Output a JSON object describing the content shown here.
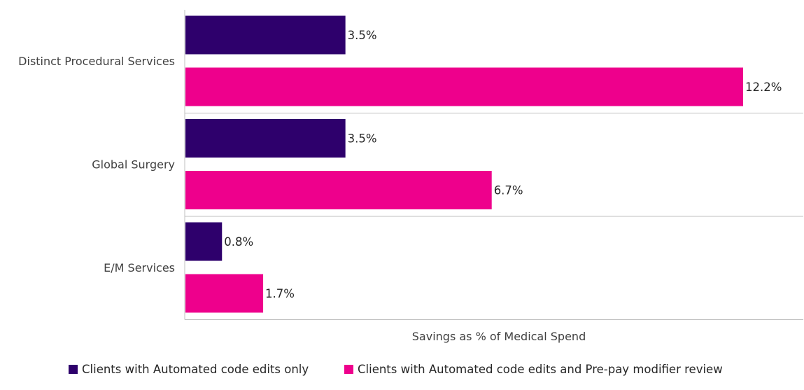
{
  "chart_data": {
    "type": "bar",
    "orientation": "horizontal",
    "categories": [
      "Distinct Procedural Services",
      "Global Surgery",
      "E/M Services"
    ],
    "series": [
      {
        "name": "Clients with Automated code edits only",
        "color": "#2e006c",
        "values": [
          3.5,
          3.5,
          0.8
        ],
        "labels": [
          "3.5%",
          "3.5%",
          "0.8%"
        ]
      },
      {
        "name": "Clients with Automated code edits and Pre-pay modifier review",
        "color": "#ee008c",
        "values": [
          12.2,
          6.7,
          1.7
        ],
        "labels": [
          "12.2%",
          "6.7%",
          "1.7%"
        ]
      }
    ],
    "xlabel": "Savings as % of Medical Spend",
    "ylabel": "",
    "xlim": [
      0,
      13.5
    ],
    "value_suffix": "%",
    "grid": "category separators",
    "legend_position": "bottom-left"
  }
}
